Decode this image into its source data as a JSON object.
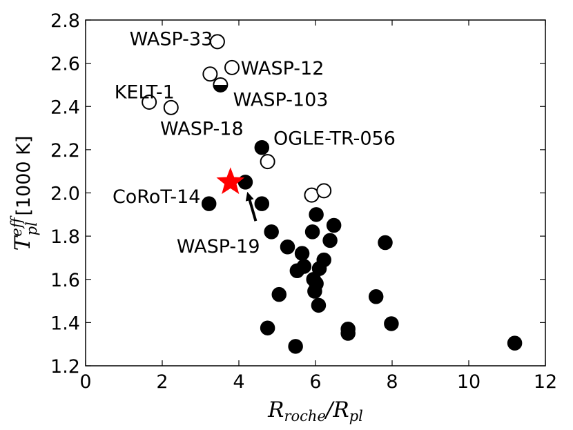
{
  "chart_data": {
    "type": "scatter",
    "xlabel": "R",
    "xlabel_sub1": "roche",
    "xlabel_mid": "/R",
    "xlabel_sub2": "pl",
    "ylabel_sym": "T",
    "ylabel_sup": "eff",
    "ylabel_sub": "pl",
    "ylabel_unit": " [1000 K]",
    "xlim": [
      0,
      12
    ],
    "ylim": [
      1.2,
      2.8
    ],
    "xticks": [
      "0",
      "2",
      "4",
      "6",
      "8",
      "10",
      "12"
    ],
    "yticks": [
      "1.2",
      "1.4",
      "1.6",
      "1.8",
      "2.0",
      "2.2",
      "2.4",
      "2.6",
      "2.8"
    ],
    "open_points": [
      {
        "x": 3.44,
        "y": 2.7
      },
      {
        "x": 3.25,
        "y": 2.55
      },
      {
        "x": 3.82,
        "y": 2.58
      },
      {
        "x": 1.66,
        "y": 2.42
      },
      {
        "x": 2.23,
        "y": 2.395
      },
      {
        "x": 4.75,
        "y": 2.145
      },
      {
        "x": 5.9,
        "y": 1.99
      },
      {
        "x": 6.22,
        "y": 2.01
      }
    ],
    "half_points": [
      {
        "x": 3.52,
        "y": 2.5
      }
    ],
    "filled_points": [
      {
        "x": 4.6,
        "y": 2.21
      },
      {
        "x": 4.17,
        "y": 2.05
      },
      {
        "x": 3.22,
        "y": 1.95
      },
      {
        "x": 4.6,
        "y": 1.95
      },
      {
        "x": 4.85,
        "y": 1.82
      },
      {
        "x": 6.02,
        "y": 1.9
      },
      {
        "x": 5.92,
        "y": 1.82
      },
      {
        "x": 6.48,
        "y": 1.85
      },
      {
        "x": 6.38,
        "y": 1.78
      },
      {
        "x": 7.82,
        "y": 1.77
      },
      {
        "x": 5.27,
        "y": 1.75
      },
      {
        "x": 5.65,
        "y": 1.72
      },
      {
        "x": 5.7,
        "y": 1.66
      },
      {
        "x": 5.52,
        "y": 1.64
      },
      {
        "x": 6.22,
        "y": 1.69
      },
      {
        "x": 6.1,
        "y": 1.65
      },
      {
        "x": 5.95,
        "y": 1.6
      },
      {
        "x": 6.02,
        "y": 1.58
      },
      {
        "x": 5.98,
        "y": 1.545
      },
      {
        "x": 5.05,
        "y": 1.53
      },
      {
        "x": 6.08,
        "y": 1.48
      },
      {
        "x": 7.58,
        "y": 1.52
      },
      {
        "x": 4.75,
        "y": 1.375
      },
      {
        "x": 6.85,
        "y": 1.37
      },
      {
        "x": 6.85,
        "y": 1.35
      },
      {
        "x": 7.98,
        "y": 1.395
      },
      {
        "x": 5.48,
        "y": 1.29
      },
      {
        "x": 11.2,
        "y": 1.305
      }
    ],
    "star_point": {
      "x": 3.78,
      "y": 2.05,
      "color": "#ff0000"
    },
    "annotations": [
      {
        "text": "WASP-33",
        "x": 3.32,
        "y": 2.715,
        "anchor": "end"
      },
      {
        "text": "WASP-12",
        "x": 4.05,
        "y": 2.58,
        "anchor": "start"
      },
      {
        "text": "KELT-1",
        "x": 2.32,
        "y": 2.47,
        "anchor": "end"
      },
      {
        "text": "WASP-103",
        "x": 3.85,
        "y": 2.435,
        "anchor": "start"
      },
      {
        "text": "WASP-18",
        "x": 4.12,
        "y": 2.3,
        "anchor": "end"
      },
      {
        "text": "OGLE-TR-056",
        "x": 4.9,
        "y": 2.255,
        "anchor": "start"
      },
      {
        "text": "CoRoT-14",
        "x": 3.0,
        "y": 1.985,
        "anchor": "end"
      },
      {
        "text": "WASP-19",
        "x": 4.55,
        "y": 1.755,
        "anchor": "end"
      }
    ],
    "arrow": {
      "x1": 4.44,
      "y1": 1.87,
      "x2": 4.22,
      "y2": 2.005
    }
  }
}
